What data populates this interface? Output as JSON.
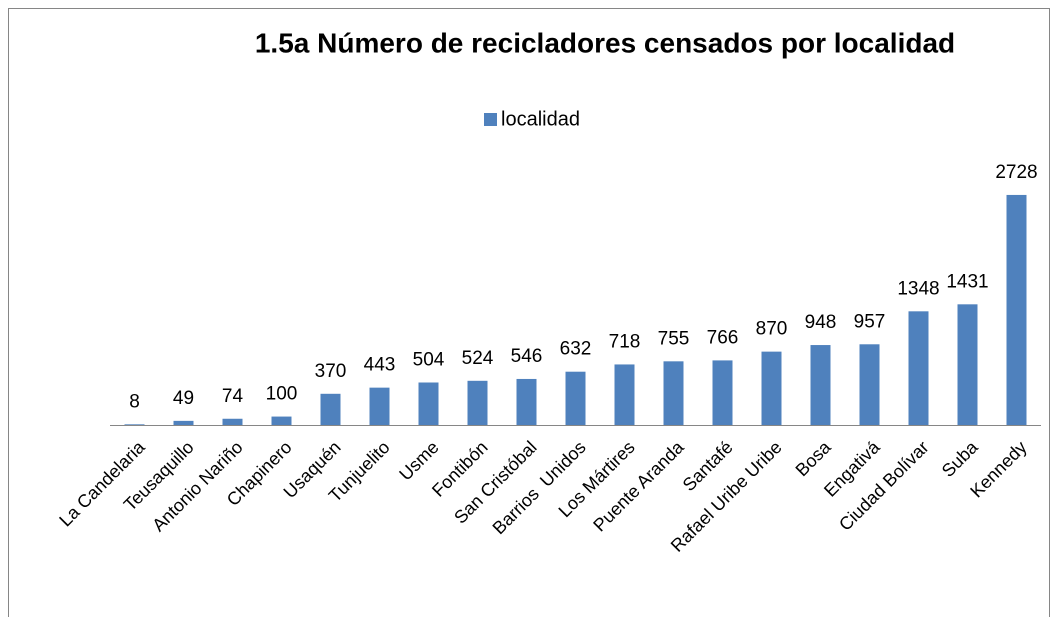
{
  "chart_data": {
    "type": "bar",
    "title": "1.5a Número de recicladores censados por localidad",
    "categories": [
      "La Candelaria",
      "Teusaquillo",
      "Antonio Nariño",
      "Chapinero",
      "Usaquén",
      "Tunjuelito",
      "Usme",
      "Fontibón",
      "San Cristóbal",
      "Barrios  Unidos",
      "Los Mártires",
      "Puente Aranda",
      "Santafé",
      "Rafael Uribe Uribe",
      "Bosa",
      "Engativá",
      "Ciudad Bolívar",
      "Suba",
      "Kennedy"
    ],
    "series": [
      {
        "name": "localidad",
        "color": "#4f81bd",
        "values": [
          8,
          49,
          74,
          100,
          370,
          443,
          504,
          524,
          546,
          632,
          718,
          755,
          766,
          870,
          948,
          957,
          1348,
          1431,
          2728
        ]
      }
    ],
    "ylim": [
      0,
      3000
    ],
    "legend": "top"
  }
}
